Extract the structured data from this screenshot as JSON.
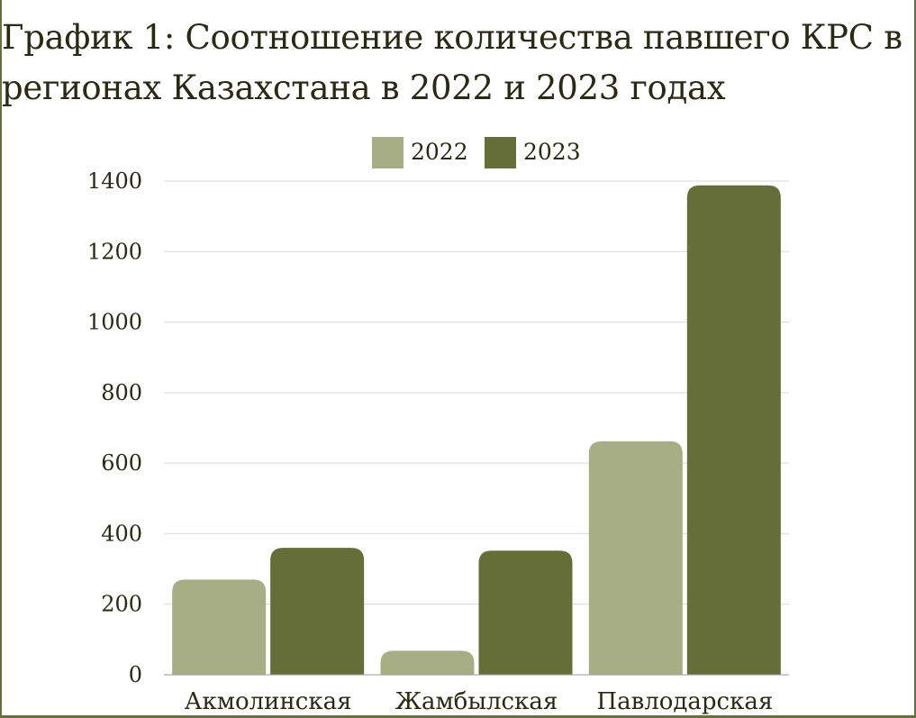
{
  "title": "График 1: Соотношение количества павшего КРС в регионах Казахстана в 2022 и 2023 годах",
  "chart_data": {
    "type": "bar",
    "title": "График 1: Соотношение количества павшего КРС в регионах Казахстана в 2022 и 2023 годах",
    "categories": [
      "Акмолинская",
      "Жамбылская",
      "Павлодарская"
    ],
    "series": [
      {
        "name": "2022",
        "color": "#a7ae84",
        "values": [
          270,
          68,
          662
        ]
      },
      {
        "name": "2023",
        "color": "#666e37",
        "values": [
          360,
          352,
          1388
        ]
      }
    ],
    "xlabel": "",
    "ylabel": "",
    "ylim": [
      0,
      1400
    ],
    "yticks": [
      "0",
      "200",
      "400",
      "600",
      "800",
      "1000",
      "1200",
      "1400"
    ],
    "grid": true,
    "legend": "top-center"
  }
}
